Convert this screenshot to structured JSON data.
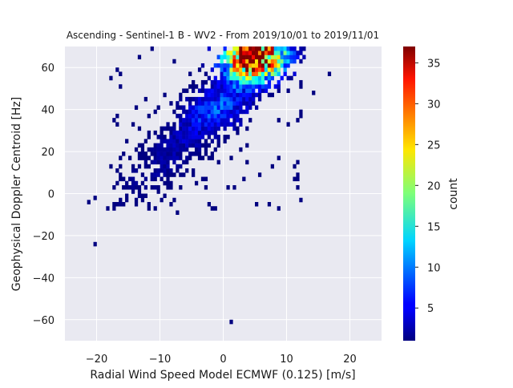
{
  "chart_data": {
    "type": "heatmap",
    "title": "Ascending - Sentinel-1 B - WV2 - From 2019/10/01 to 2019/11/01",
    "xlabel": "Radial Wind Speed Model ECMWF (0.125) [m/s]",
    "ylabel": "Geophysical Doppler Centroid [Hz]",
    "xlim": [
      -25,
      25
    ],
    "ylim": [
      -70,
      70
    ],
    "xticks": [
      -20,
      -10,
      0,
      10,
      20
    ],
    "yticks": [
      -60,
      -40,
      -20,
      0,
      20,
      40,
      60
    ],
    "grid": true,
    "background": "#e9e9f1",
    "bin_size": {
      "x": 0.5,
      "y": 2
    },
    "colorbar": {
      "label": "count",
      "colormap": "jet",
      "range": [
        1,
        37
      ],
      "ticks": [
        5,
        10,
        15,
        20,
        25,
        30,
        35
      ]
    },
    "density_model": {
      "ridge_slope": 2.9,
      "ridge_intercept": 45,
      "x_range": [
        -19,
        13
      ],
      "y_range": [
        -8,
        70
      ],
      "peak_center": [
        4.5,
        64
      ],
      "peak_count": 37
    },
    "sparse_points": [
      [
        -20.5,
        -25
      ],
      [
        1,
        -62
      ],
      [
        -8.5,
        -6
      ],
      [
        -7.5,
        -10
      ],
      [
        -21.5,
        -5
      ],
      [
        -20.5,
        -3
      ],
      [
        14,
        47
      ],
      [
        16.5,
        56
      ],
      [
        12,
        36
      ],
      [
        -3,
        2
      ]
    ]
  }
}
